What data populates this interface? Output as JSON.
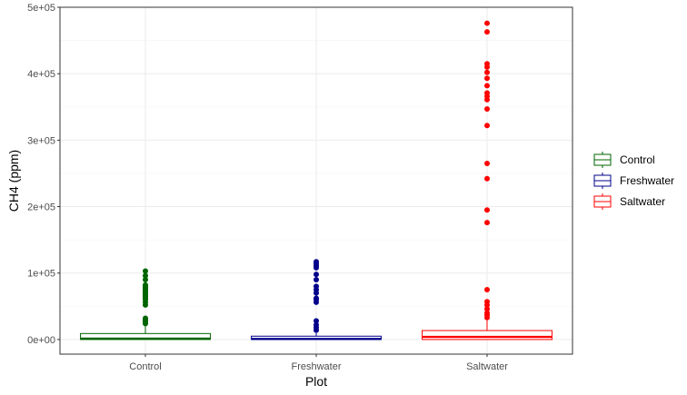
{
  "chart_data": {
    "type": "boxplot",
    "xlabel": "Plot",
    "ylabel": "CH4 (ppm)",
    "ylim": [
      -22000,
      500000
    ],
    "yticks": [
      {
        "value": 0,
        "label": "0e+00"
      },
      {
        "value": 100000,
        "label": "1e+05"
      },
      {
        "value": 200000,
        "label": "2e+05"
      },
      {
        "value": 300000,
        "label": "3e+05"
      },
      {
        "value": 400000,
        "label": "4e+05"
      },
      {
        "value": 500000,
        "label": "5e+05"
      }
    ],
    "categories": [
      "Control",
      "Freshwater",
      "Saltwater"
    ],
    "grid": true,
    "legend": {
      "position": "right",
      "title": "",
      "entries": [
        "Control",
        "Freshwater",
        "Saltwater"
      ]
    },
    "series": [
      {
        "name": "Control",
        "color": "#006400",
        "q1": 0,
        "median": 1500,
        "q3": 9000,
        "whisker_low": 0,
        "whisker_high": 22000,
        "outliers": [
          24000,
          26000,
          28000,
          30000,
          32000,
          52000,
          56000,
          60000,
          62000,
          64000,
          66000,
          68000,
          70000,
          72000,
          74000,
          76000,
          78000,
          80000,
          82000,
          90000,
          96000,
          103000
        ]
      },
      {
        "name": "Freshwater",
        "color": "#00008B",
        "q1": 0,
        "median": 1000,
        "q3": 5000,
        "whisker_low": 0,
        "whisker_high": 10000,
        "outliers": [
          14000,
          18000,
          22000,
          28000,
          56000,
          60000,
          62000,
          70000,
          75000,
          80000,
          90000,
          98000,
          108000,
          111000,
          114000,
          117000
        ]
      },
      {
        "name": "Saltwater",
        "color": "#FF0000",
        "q1": 0,
        "median": 4000,
        "q3": 13500,
        "whisker_low": 0,
        "whisker_high": 31000,
        "outliers": [
          33000,
          37000,
          40000,
          46000,
          52000,
          57000,
          75000,
          176000,
          195000,
          242000,
          265000,
          322000,
          347000,
          361000,
          366000,
          371000,
          382000,
          393000,
          402000,
          410000,
          415000,
          463000,
          476000
        ]
      }
    ]
  }
}
